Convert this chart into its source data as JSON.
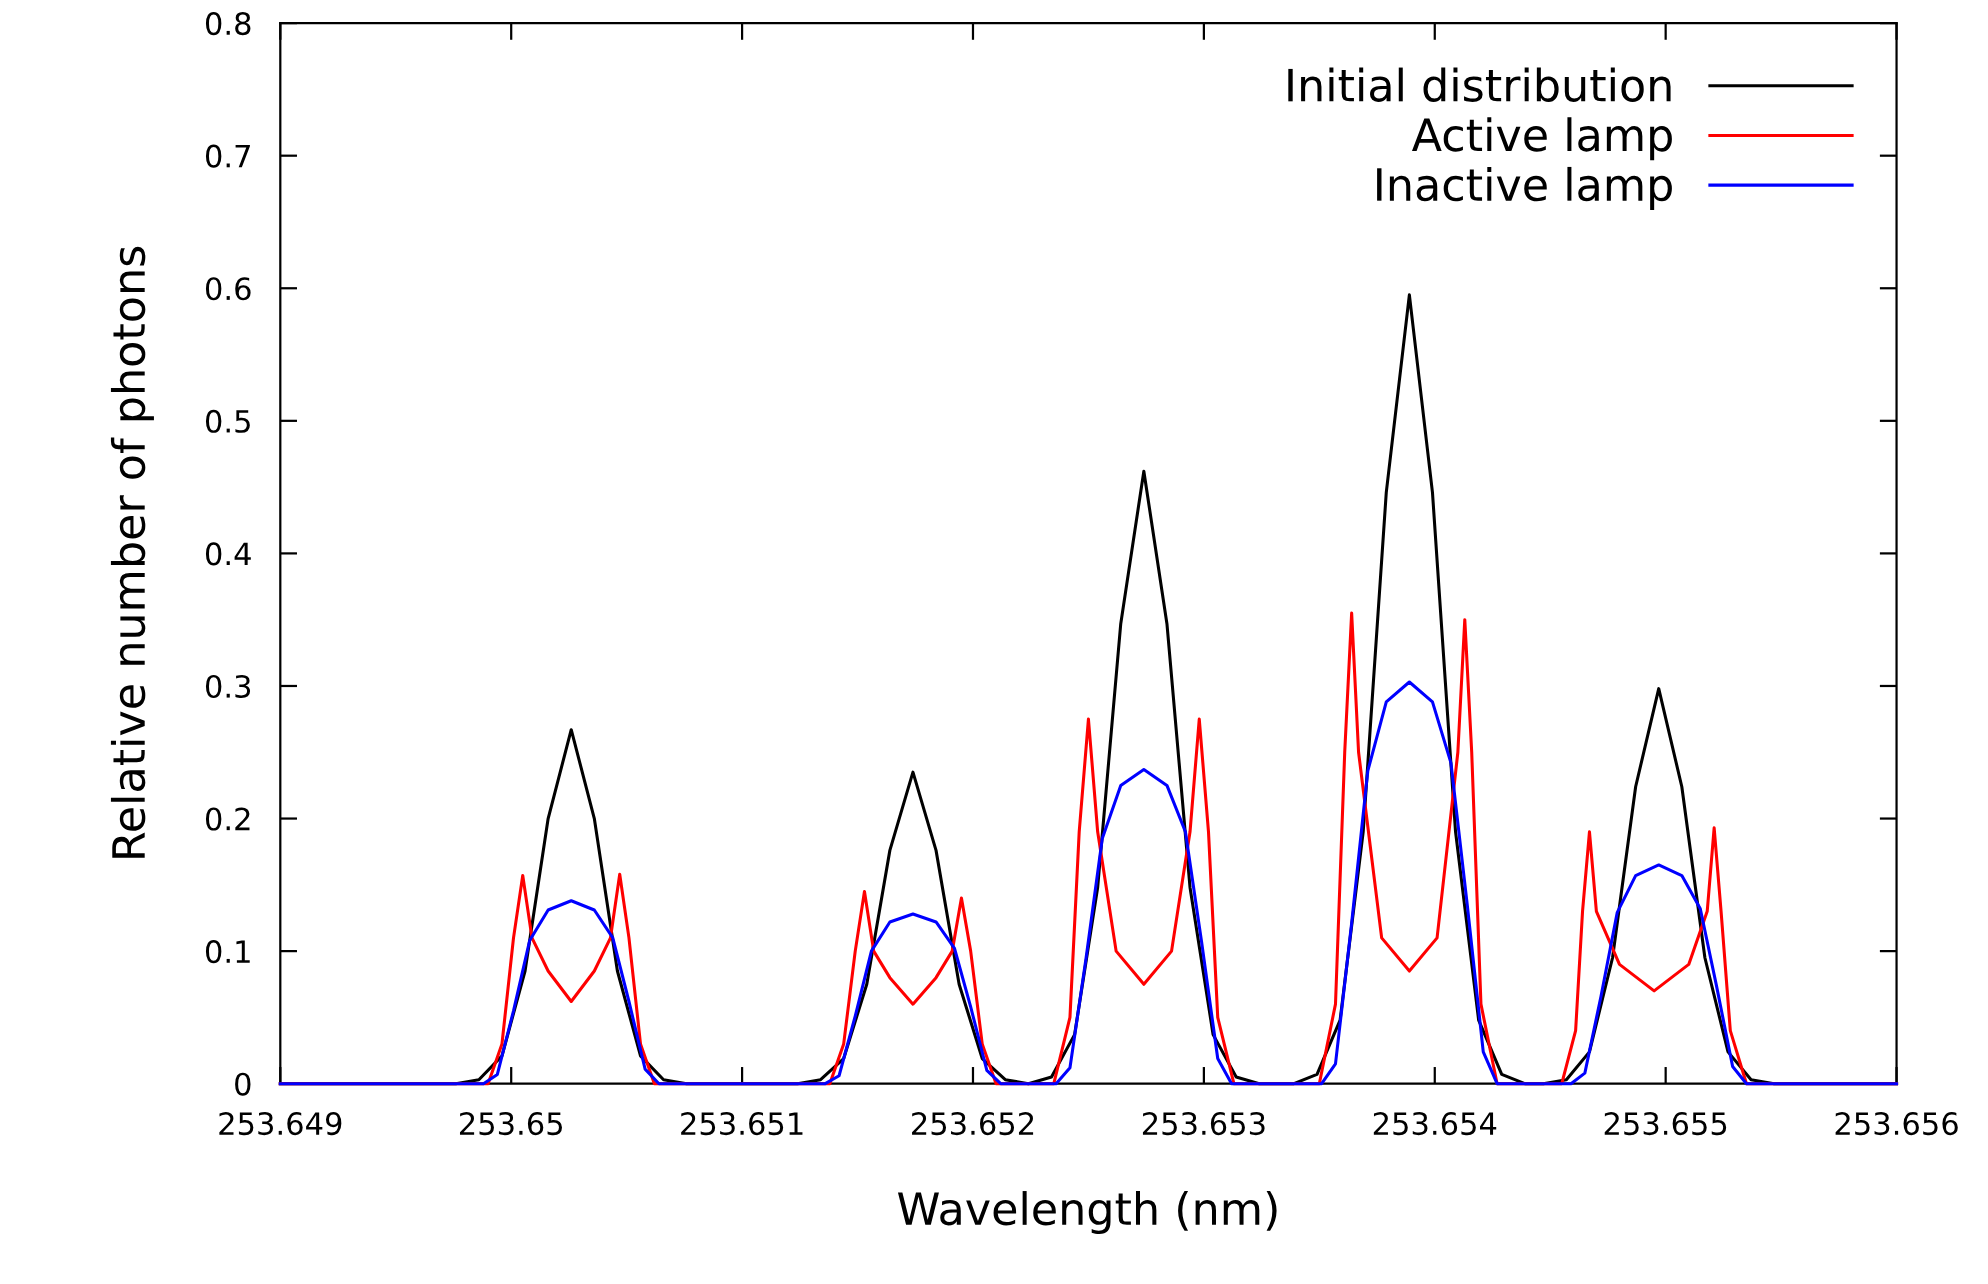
{
  "chart_data": {
    "type": "line",
    "xlabel": "Wavelength (nm)",
    "ylabel": "Relative number of photons",
    "xlim": [
      253.649,
      253.656
    ],
    "xticks": [
      253.649,
      253.65,
      253.651,
      253.652,
      253.653,
      253.654,
      253.655,
      253.656
    ],
    "ylim": [
      0,
      0.8
    ],
    "yticks": [
      0,
      0.1,
      0.2,
      0.3,
      0.4,
      0.5,
      0.6,
      0.7,
      0.8
    ],
    "grid": false,
    "legend": "top right",
    "marker": "none",
    "line_style": "solid",
    "series": [
      {
        "name": "Initial distribution",
        "color": "#000000",
        "x": [
          253.649,
          253.64976,
          253.64986,
          253.64996,
          253.65006,
          253.65016,
          253.65026,
          253.65036,
          253.65046,
          253.65056,
          253.65066,
          253.65076,
          253.65124,
          253.65134,
          253.65144,
          253.65154,
          253.65164,
          253.65174,
          253.65184,
          253.65194,
          253.65204,
          253.65214,
          253.65224,
          253.65234,
          253.65244,
          253.65254,
          253.65264,
          253.65274,
          253.65284,
          253.65294,
          253.65304,
          253.65314,
          253.65324,
          253.65339,
          253.65349,
          253.65359,
          253.65369,
          253.65379,
          253.65389,
          253.65399,
          253.65409,
          253.65419,
          253.65429,
          253.65439,
          253.65447,
          253.65457,
          253.65467,
          253.65477,
          253.65487,
          253.65497,
          253.65507,
          253.65517,
          253.65527,
          253.65537,
          253.65547,
          253.656
        ],
        "values": [
          0,
          0,
          0.003,
          0.021,
          0.085,
          0.2,
          0.267,
          0.2,
          0.085,
          0.021,
          0.003,
          0,
          0,
          0.003,
          0.019,
          0.075,
          0.176,
          0.235,
          0.176,
          0.075,
          0.019,
          0.003,
          0,
          0.005,
          0.037,
          0.148,
          0.347,
          0.462,
          0.347,
          0.148,
          0.037,
          0.005,
          0,
          0,
          0.007,
          0.048,
          0.19,
          0.446,
          0.595,
          0.446,
          0.19,
          0.048,
          0.007,
          0,
          0,
          0.003,
          0.024,
          0.095,
          0.224,
          0.298,
          0.224,
          0.095,
          0.024,
          0.003,
          0,
          0
        ]
      },
      {
        "name": "Active lamp",
        "color": "#ff0000",
        "x": [
          253.649,
          253.6499,
          253.64996,
          253.65001,
          253.65005,
          253.65009,
          253.65016,
          253.65026,
          253.65036,
          253.65043,
          253.65047,
          253.65051,
          253.65056,
          253.65062,
          253.65138,
          253.65144,
          253.65149,
          253.65153,
          253.65157,
          253.65164,
          253.65174,
          253.65184,
          253.65191,
          253.65195,
          253.65199,
          253.65204,
          253.6521,
          253.65235,
          253.65242,
          253.65246,
          253.6525,
          253.65254,
          253.65262,
          253.65274,
          253.65286,
          253.65294,
          253.65298,
          253.65302,
          253.65306,
          253.65313,
          253.6535,
          253.65357,
          253.65361,
          253.65364,
          253.65367,
          253.65377,
          253.65389,
          253.65401,
          253.6541,
          253.65413,
          253.65416,
          253.6542,
          253.65427,
          253.65455,
          253.65461,
          253.65464,
          253.65467,
          253.6547,
          253.6548,
          253.65495,
          253.6551,
          253.65518,
          253.65521,
          253.65524,
          253.65528,
          253.65535,
          253.656
        ],
        "values": [
          0,
          0,
          0.03,
          0.11,
          0.157,
          0.11,
          0.085,
          0.062,
          0.085,
          0.11,
          0.158,
          0.11,
          0.03,
          0,
          0,
          0.03,
          0.1,
          0.145,
          0.1,
          0.08,
          0.06,
          0.08,
          0.1,
          0.14,
          0.1,
          0.03,
          0,
          0,
          0.05,
          0.19,
          0.275,
          0.19,
          0.1,
          0.075,
          0.1,
          0.19,
          0.275,
          0.19,
          0.05,
          0,
          0,
          0.06,
          0.25,
          0.355,
          0.25,
          0.11,
          0.085,
          0.11,
          0.25,
          0.35,
          0.25,
          0.06,
          0,
          0,
          0.04,
          0.13,
          0.19,
          0.13,
          0.09,
          0.07,
          0.09,
          0.13,
          0.193,
          0.13,
          0.04,
          0,
          0
        ]
      },
      {
        "name": "Inactive lamp",
        "color": "#0000ff",
        "x": [
          253.649,
          253.64988,
          253.64994,
          253.65001,
          253.65008,
          253.65016,
          253.65026,
          253.65036,
          253.65044,
          253.65051,
          253.65058,
          253.65064,
          253.65136,
          253.65142,
          253.65149,
          253.65156,
          253.65164,
          253.65174,
          253.65184,
          253.65192,
          253.65199,
          253.65206,
          253.65212,
          253.65236,
          253.65242,
          253.65249,
          253.65256,
          253.65264,
          253.65274,
          253.65284,
          253.65292,
          253.65299,
          253.65306,
          253.65312,
          253.65351,
          253.65357,
          253.65364,
          253.65371,
          253.65379,
          253.65389,
          253.65399,
          253.65407,
          253.65414,
          253.65421,
          253.65427,
          253.65459,
          253.65465,
          253.65472,
          253.65479,
          253.65487,
          253.65497,
          253.65507,
          253.65515,
          253.65522,
          253.65529,
          253.65535,
          253.656
        ],
        "values": [
          0,
          0,
          0.007,
          0.055,
          0.108,
          0.131,
          0.138,
          0.131,
          0.11,
          0.062,
          0.011,
          0,
          0,
          0.006,
          0.051,
          0.1,
          0.122,
          0.128,
          0.122,
          0.102,
          0.058,
          0.01,
          0,
          0,
          0.012,
          0.095,
          0.185,
          0.225,
          0.237,
          0.225,
          0.19,
          0.107,
          0.019,
          0,
          0,
          0.015,
          0.121,
          0.236,
          0.288,
          0.303,
          0.288,
          0.242,
          0.136,
          0.024,
          0,
          0,
          0.008,
          0.066,
          0.129,
          0.157,
          0.165,
          0.157,
          0.132,
          0.074,
          0.013,
          0,
          0
        ]
      }
    ]
  }
}
